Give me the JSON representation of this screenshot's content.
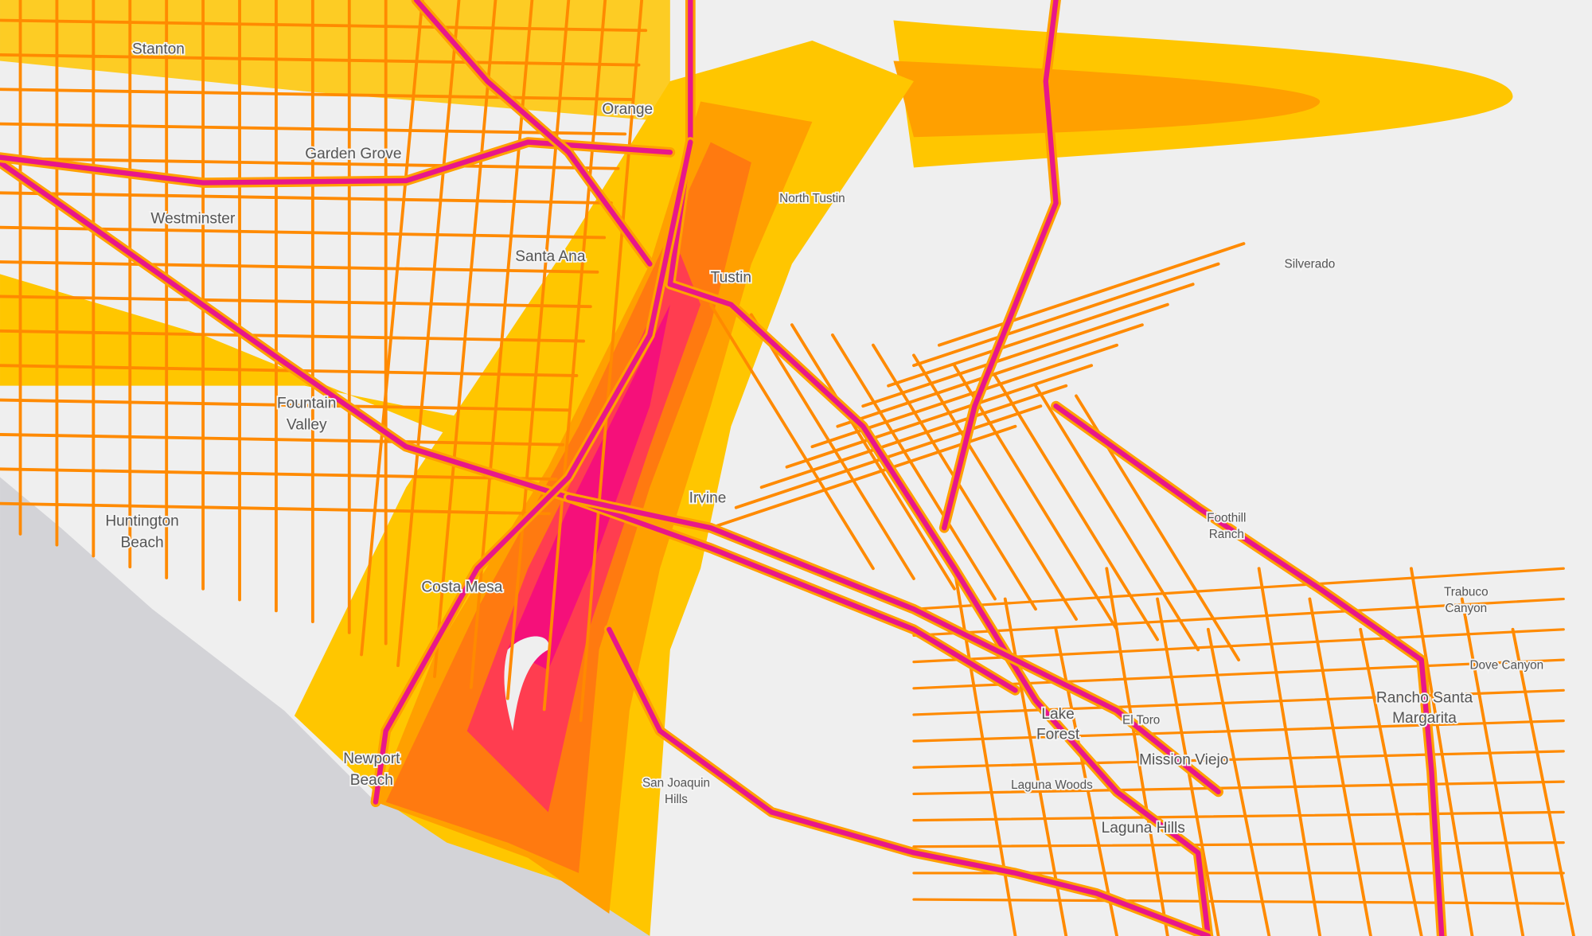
{
  "map": {
    "places": [
      [
        "Stanton"
      ],
      [
        "Orange"
      ],
      [
        "Garden Grove"
      ],
      [
        "Westminster"
      ],
      [
        "Santa Ana"
      ],
      [
        "North Tustin"
      ],
      [
        "Tustin"
      ],
      [
        "Silverado"
      ],
      [
        "Fountain",
        "Valley"
      ],
      [
        "Huntington",
        "Beach"
      ],
      [
        "Irvine"
      ],
      [
        "Foothill",
        "Ranch"
      ],
      [
        "Trabuco",
        "Canyon"
      ],
      [
        "Dove Canyon"
      ],
      [
        "Costa Mesa"
      ],
      [
        "Rancho Santa",
        "Margarita"
      ],
      [
        "Lake",
        "Forest"
      ],
      [
        "El Toro"
      ],
      [
        "Mission Viejo"
      ],
      [
        "Laguna Woods"
      ],
      [
        "Laguna Hills"
      ],
      [
        "Newport",
        "Beach"
      ],
      [
        "San Joaquin",
        "Hills"
      ]
    ]
  }
}
